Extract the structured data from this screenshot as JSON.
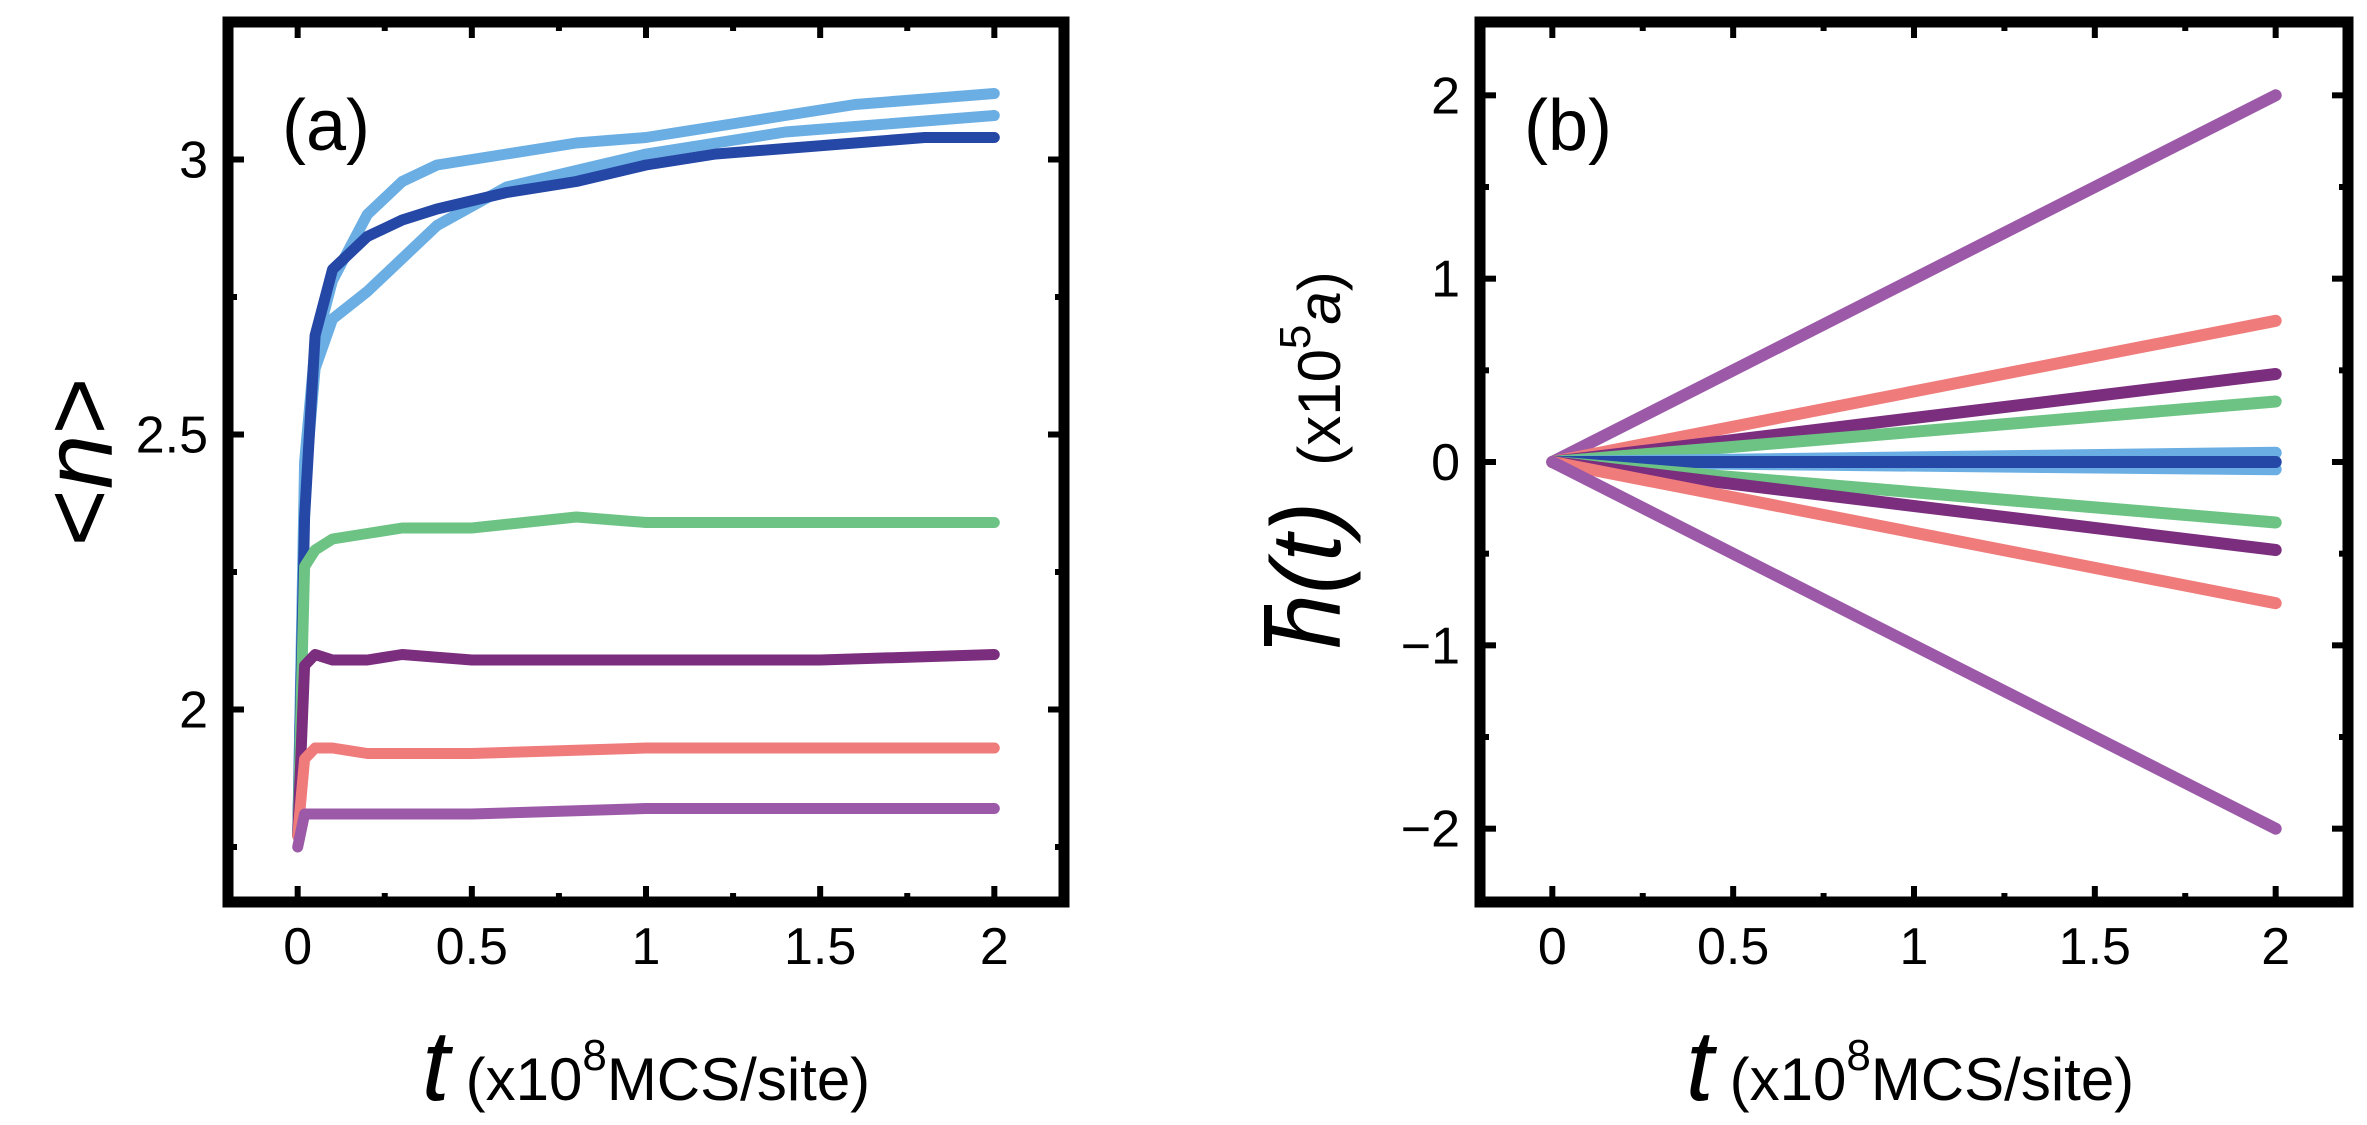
{
  "chart_data": [
    {
      "type": "line",
      "panel_label": "(a)",
      "xlabel_var": "t",
      "xlabel_units_prefix": "(x10",
      "xlabel_units_exp": "8",
      "xlabel_units_suffix": "MCS/site)",
      "ylabel": "<n>",
      "ylabel_var": "n",
      "xlim": [
        -0.2,
        2.2
      ],
      "ylim": [
        1.65,
        3.25
      ],
      "xticks": [
        0,
        0.5,
        1,
        1.5,
        2
      ],
      "xtick_labels": [
        "0",
        "0.5",
        "1",
        "1.5",
        "2"
      ],
      "yticks": [
        2,
        2.5,
        3
      ],
      "ytick_labels": [
        "2",
        "2.5",
        "3"
      ],
      "series": [
        {
          "name": "light-blue-1",
          "color": "#6aaee3",
          "x": [
            0,
            0.02,
            0.05,
            0.1,
            0.2,
            0.3,
            0.4,
            0.6,
            0.8,
            1.0,
            1.2,
            1.4,
            1.6,
            1.8,
            2.0
          ],
          "y": [
            1.77,
            2.4,
            2.62,
            2.71,
            2.76,
            2.82,
            2.88,
            2.95,
            2.98,
            3.01,
            3.03,
            3.05,
            3.06,
            3.07,
            3.08
          ]
        },
        {
          "name": "light-blue-2",
          "color": "#6aaee3",
          "x": [
            0,
            0.02,
            0.05,
            0.1,
            0.2,
            0.3,
            0.4,
            0.6,
            0.8,
            1.0,
            1.2,
            1.4,
            1.6,
            1.8,
            2.0
          ],
          "y": [
            1.77,
            2.45,
            2.66,
            2.78,
            2.9,
            2.96,
            2.99,
            3.01,
            3.03,
            3.04,
            3.06,
            3.08,
            3.1,
            3.11,
            3.12
          ]
        },
        {
          "name": "dark-blue",
          "color": "#2547a6",
          "x": [
            0,
            0.02,
            0.05,
            0.1,
            0.2,
            0.3,
            0.4,
            0.6,
            0.8,
            1.0,
            1.2,
            1.4,
            1.6,
            1.8,
            2.0
          ],
          "y": [
            1.77,
            2.35,
            2.68,
            2.8,
            2.86,
            2.89,
            2.91,
            2.94,
            2.96,
            2.99,
            3.01,
            3.02,
            3.03,
            3.04,
            3.04
          ]
        },
        {
          "name": "green",
          "color": "#6cc384",
          "x": [
            0,
            0.02,
            0.05,
            0.1,
            0.2,
            0.3,
            0.5,
            0.8,
            1.0,
            1.5,
            2.0
          ],
          "y": [
            1.77,
            2.26,
            2.29,
            2.31,
            2.32,
            2.33,
            2.33,
            2.35,
            2.34,
            2.34,
            2.34
          ]
        },
        {
          "name": "dark-purple",
          "color": "#7b2d7e",
          "x": [
            0,
            0.02,
            0.05,
            0.1,
            0.2,
            0.3,
            0.5,
            0.8,
            1.0,
            1.5,
            2.0
          ],
          "y": [
            1.77,
            2.08,
            2.1,
            2.09,
            2.09,
            2.1,
            2.09,
            2.09,
            2.09,
            2.09,
            2.1
          ]
        },
        {
          "name": "salmon",
          "color": "#f07b7b",
          "x": [
            0,
            0.02,
            0.05,
            0.1,
            0.2,
            0.5,
            1.0,
            1.5,
            2.0
          ],
          "y": [
            1.77,
            1.91,
            1.93,
            1.93,
            1.92,
            1.92,
            1.93,
            1.93,
            1.93
          ]
        },
        {
          "name": "purple",
          "color": "#9b59a8",
          "x": [
            0,
            0.02,
            0.05,
            0.1,
            0.5,
            1.0,
            1.5,
            2.0
          ],
          "y": [
            1.75,
            1.81,
            1.81,
            1.81,
            1.81,
            1.82,
            1.82,
            1.82
          ]
        }
      ]
    },
    {
      "type": "line",
      "panel_label": "(b)",
      "xlabel_var": "t",
      "xlabel_units_prefix": "(x10",
      "xlabel_units_exp": "8",
      "xlabel_units_suffix": "MCS/site)",
      "ylabel_var": "h(t)",
      "ylabel_units_prefix": "(x10",
      "ylabel_units_exp": "5",
      "ylabel_units_var": "a",
      "ylabel_units_suffix": ")",
      "xlim": [
        -0.2,
        2.2
      ],
      "ylim": [
        -2.4,
        2.4
      ],
      "xticks": [
        0,
        0.5,
        1,
        1.5,
        2
      ],
      "xtick_labels": [
        "0",
        "0.5",
        "1",
        "1.5",
        "2"
      ],
      "yticks": [
        -2,
        -1,
        0,
        1,
        2
      ],
      "ytick_labels": [
        "−2",
        "−1",
        "0",
        "1",
        "2"
      ],
      "series": [
        {
          "name": "purple-up",
          "color": "#9b59a8",
          "x": [
            0,
            2
          ],
          "y": [
            0,
            2.0
          ]
        },
        {
          "name": "salmon-up",
          "color": "#f07b7b",
          "x": [
            0,
            2
          ],
          "y": [
            0,
            0.77
          ]
        },
        {
          "name": "dark-purple-up",
          "color": "#7b2d7e",
          "x": [
            0,
            2
          ],
          "y": [
            0,
            0.48
          ]
        },
        {
          "name": "green-up",
          "color": "#6cc384",
          "x": [
            0,
            2
          ],
          "y": [
            0,
            0.33
          ]
        },
        {
          "name": "light-blue-up",
          "color": "#6aaee3",
          "x": [
            0,
            2
          ],
          "y": [
            0,
            0.05
          ]
        },
        {
          "name": "light-blue-down",
          "color": "#6aaee3",
          "x": [
            0,
            2
          ],
          "y": [
            0,
            -0.04
          ]
        },
        {
          "name": "dark-blue",
          "color": "#2547a6",
          "x": [
            0,
            2
          ],
          "y": [
            0,
            0.0
          ]
        },
        {
          "name": "green-down",
          "color": "#6cc384",
          "x": [
            0,
            2
          ],
          "y": [
            0,
            -0.33
          ]
        },
        {
          "name": "dark-purple-down",
          "color": "#7b2d7e",
          "x": [
            0,
            2
          ],
          "y": [
            0,
            -0.48
          ]
        },
        {
          "name": "salmon-down",
          "color": "#f07b7b",
          "x": [
            0,
            2
          ],
          "y": [
            0,
            -0.77
          ]
        },
        {
          "name": "purple-down",
          "color": "#9b59a8",
          "x": [
            0,
            2
          ],
          "y": [
            0,
            -2.0
          ]
        }
      ]
    }
  ]
}
